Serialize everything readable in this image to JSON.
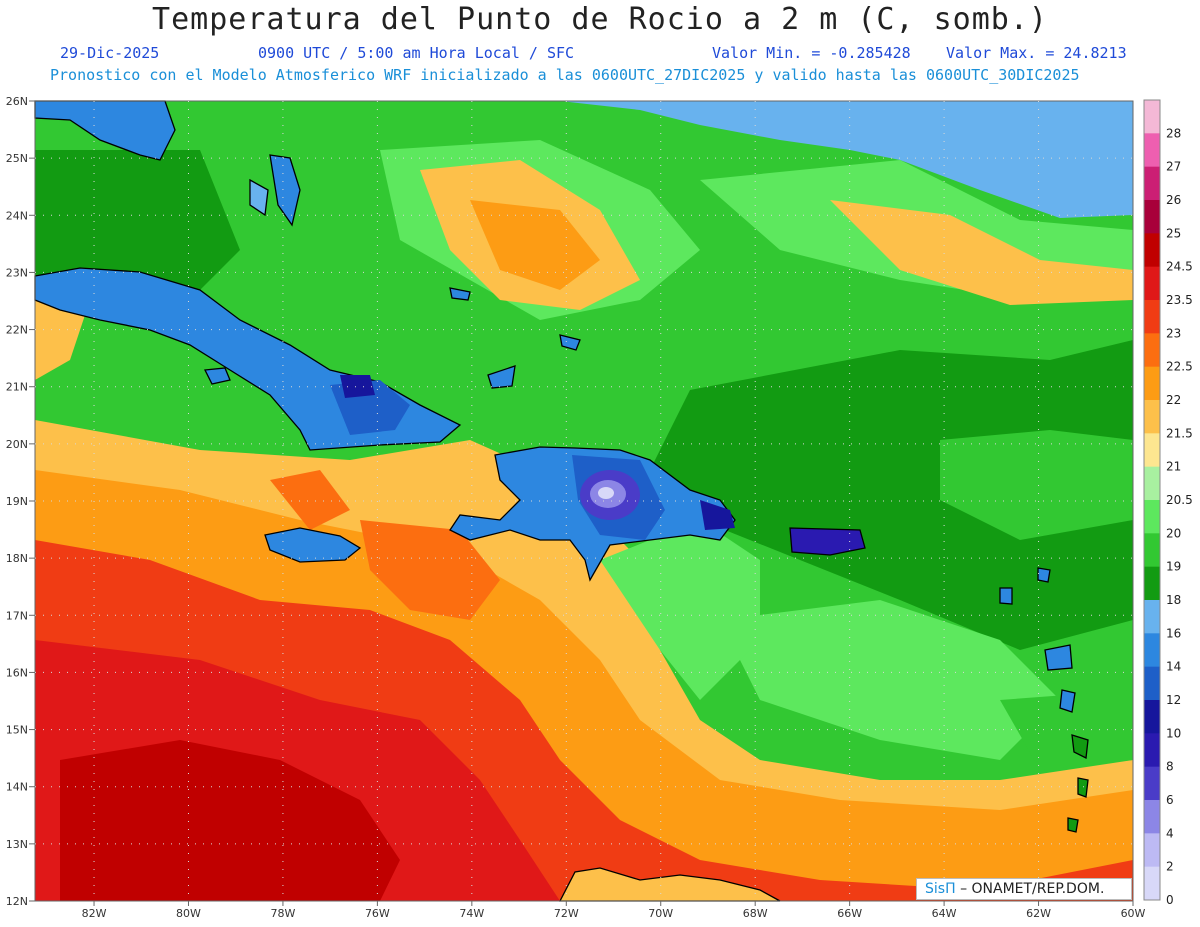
{
  "header": {
    "title": "Temperatura del Punto de Rocio a 2 m (C, somb.)",
    "date": "29-Dic-2025",
    "time": "0900 UTC / 5:00 am Hora Local / SFC",
    "min_label": "Valor Min. = -0.285428",
    "max_label": "Valor Max. = 24.8213",
    "model_info": "Pronostico con el Modelo Atmosferico WRF inicializado a las 0600UTC_27DIC2025 y valido hasta las  0600UTC_30DIC2025"
  },
  "colors": {
    "date_color": "#1f4ad8",
    "model_info_color": "#1a8fd8"
  },
  "map": {
    "lat_labels": [
      "26N",
      "25N",
      "24N",
      "23N",
      "22N",
      "21N",
      "20N",
      "19N",
      "18N",
      "17N",
      "16N",
      "15N",
      "14N",
      "13N",
      "12N"
    ],
    "lon_labels": [
      "82W",
      "80W",
      "78W",
      "76W",
      "74W",
      "72W",
      "70W",
      "68W",
      "66W",
      "64W",
      "62W",
      "60W"
    ],
    "lat_range": [
      12,
      26
    ],
    "lon_range": [
      -83.25,
      -60
    ]
  },
  "colorbar": {
    "levels": [
      {
        "label": "28",
        "color": "#f4b8d6"
      },
      {
        "label": "27",
        "color": "#ee5fb0"
      },
      {
        "label": "26",
        "color": "#cc1f74"
      },
      {
        "label": "25",
        "color": "#a8003a"
      },
      {
        "label": "24.5",
        "color": "#c00000"
      },
      {
        "label": "23.5",
        "color": "#e01818"
      },
      {
        "label": "23",
        "color": "#f03c14"
      },
      {
        "label": "22.5",
        "color": "#fc6e10"
      },
      {
        "label": "22",
        "color": "#fd9c14"
      },
      {
        "label": "21.5",
        "color": "#fdc04a"
      },
      {
        "label": "21",
        "color": "#fde690"
      },
      {
        "label": "20.5",
        "color": "#a8f0a0"
      },
      {
        "label": "20",
        "color": "#5de85e"
      },
      {
        "label": "19",
        "color": "#32c832"
      },
      {
        "label": "18",
        "color": "#129b12"
      },
      {
        "label": "16",
        "color": "#68b2ee"
      },
      {
        "label": "14",
        "color": "#2d87e0"
      },
      {
        "label": "12",
        "color": "#1e5fc8"
      },
      {
        "label": "10",
        "color": "#16169c"
      },
      {
        "label": "8",
        "color": "#2a1ab0"
      },
      {
        "label": "6",
        "color": "#4a3cc8"
      },
      {
        "label": "4",
        "color": "#8c86e6"
      },
      {
        "label": "2",
        "color": "#bdbaf4"
      },
      {
        "label": "0",
        "color": "#d8d8f8"
      }
    ]
  },
  "credit": {
    "brand": "SisΠ",
    "org": "– ONAMET/REP.DOM."
  }
}
